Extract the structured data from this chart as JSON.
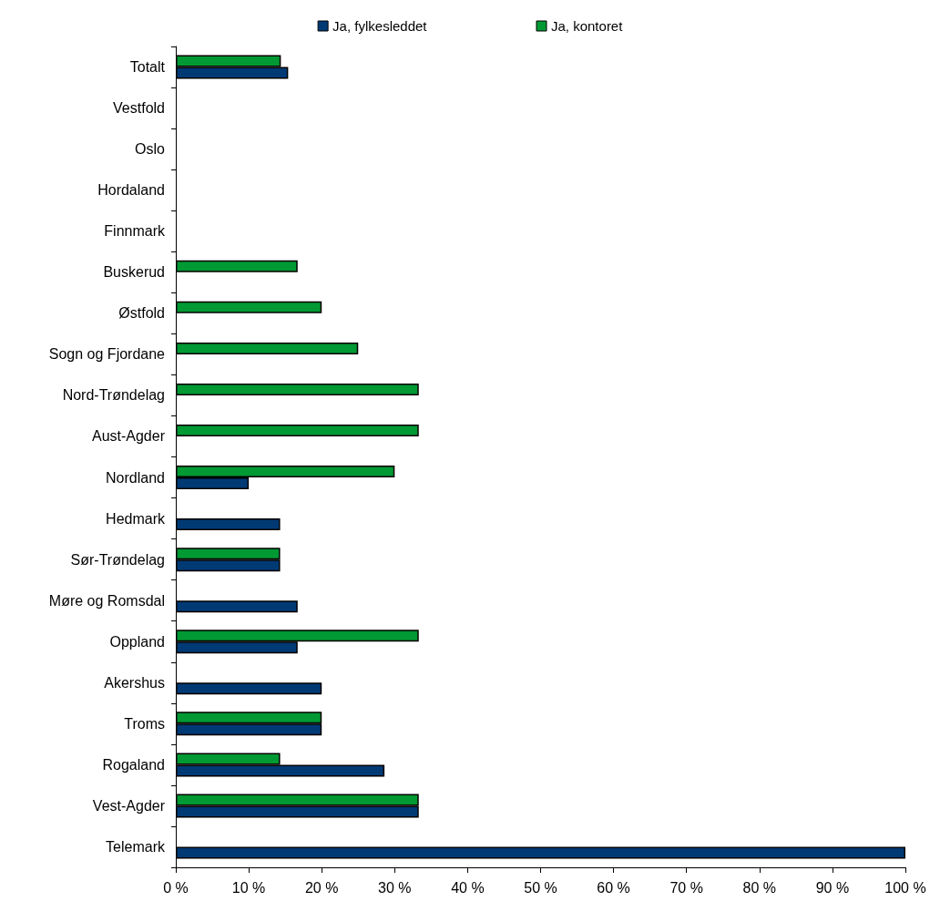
{
  "chart_data": {
    "type": "bar",
    "orientation": "horizontal",
    "categories": [
      "Totalt",
      "Vestfold",
      "Oslo",
      "Hordaland",
      "Finnmark",
      "Buskerud",
      "Østfold",
      "Sogn og Fjordane",
      "Nord-Trøndelag",
      "Aust-Agder",
      "Nordland",
      "Hedmark",
      "Sør-Trøndelag",
      "Møre og Romsdal",
      "Oppland",
      "Akershus",
      "Troms",
      "Rogaland",
      "Vest-Agder",
      "Telemark"
    ],
    "series": [
      {
        "name": "Ja, fylkesleddet",
        "color": "#003a75",
        "values": [
          15.4,
          null,
          null,
          null,
          null,
          null,
          null,
          null,
          null,
          null,
          10,
          14.3,
          14.3,
          16.7,
          16.7,
          20,
          20,
          28.6,
          33.3,
          100
        ]
      },
      {
        "name": "Ja, kontoret",
        "color": "#009933",
        "values": [
          14.4,
          null,
          null,
          null,
          null,
          16.7,
          20,
          25,
          33.3,
          33.3,
          30,
          null,
          14.3,
          null,
          33.3,
          null,
          20,
          14.3,
          33.3,
          null
        ]
      }
    ],
    "xlim": [
      0,
      100
    ],
    "xticks": [
      {
        "value": 0,
        "label": "0 %"
      },
      {
        "value": 10,
        "label": "10 %"
      },
      {
        "value": 20,
        "label": "20 %"
      },
      {
        "value": 30,
        "label": "30 %"
      },
      {
        "value": 40,
        "label": "40 %"
      },
      {
        "value": 50,
        "label": "50 %"
      },
      {
        "value": 60,
        "label": "60 %"
      },
      {
        "value": 70,
        "label": "70 %"
      },
      {
        "value": 80,
        "label": "80 %"
      },
      {
        "value": 90,
        "label": "90 %"
      },
      {
        "value": 100,
        "label": "100 %"
      }
    ],
    "grid": false,
    "legend": "top"
  }
}
